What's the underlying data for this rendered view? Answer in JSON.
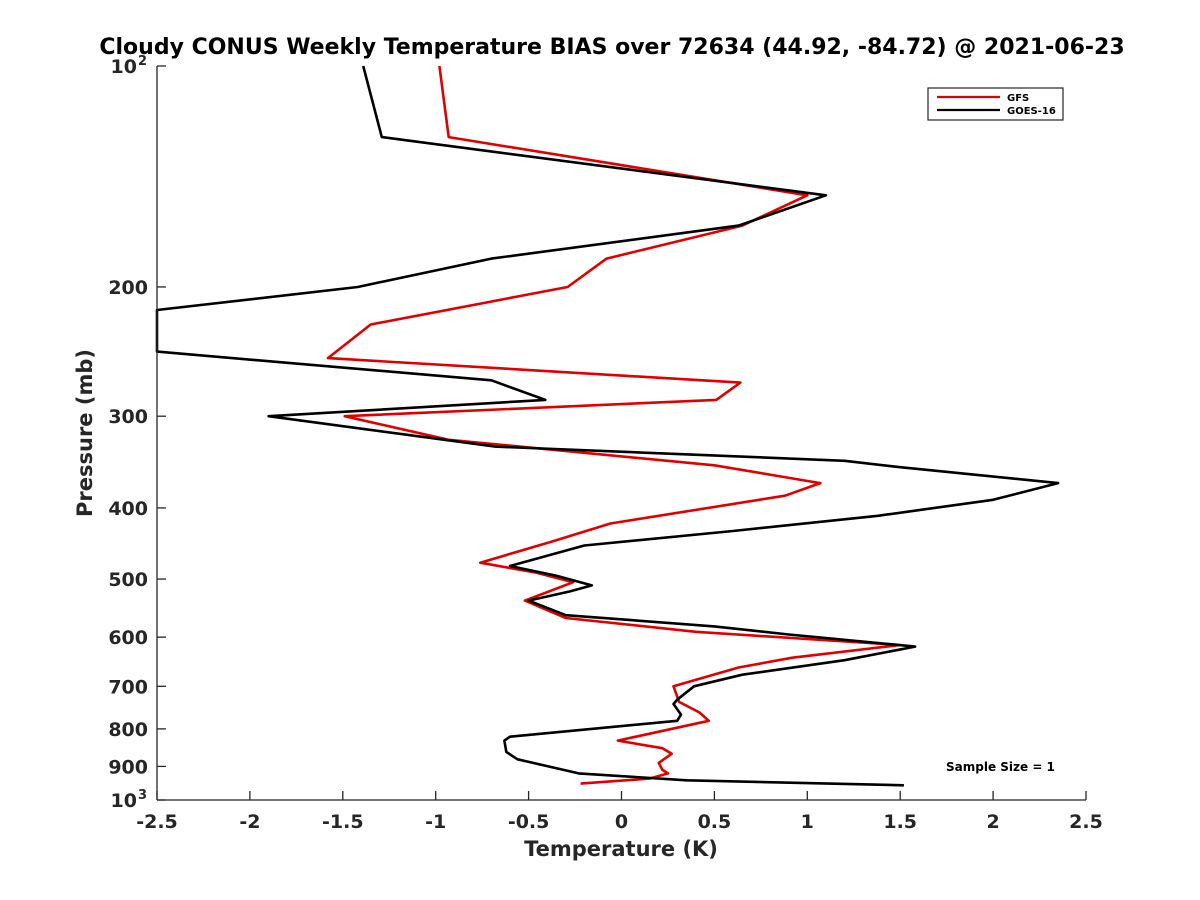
{
  "chart_data": {
    "type": "line",
    "title": "Cloudy CONUS Weekly Temperature BIAS over 72634 (44.92, -84.72) @ 2021-06-23",
    "xlabel": "Temperature (K)",
    "ylabel": "Pressure (mb)",
    "xlim": [
      -2.5,
      2.5
    ],
    "ylim": [
      100,
      1000
    ],
    "y_scale": "log",
    "y_reversed": true,
    "grid": false,
    "legend_position": "top-right",
    "x_ticks": [
      "-2.5",
      "-2",
      "-1.5",
      "-1",
      "-0.5",
      "0",
      "0.5",
      "1",
      "1.5",
      "2",
      "2.5"
    ],
    "y_ticks": [
      {
        "value": 100,
        "base": "10",
        "exp": "2"
      },
      {
        "value": 200,
        "label": "200"
      },
      {
        "value": 300,
        "label": "300"
      },
      {
        "value": 400,
        "label": "400"
      },
      {
        "value": 500,
        "label": "500"
      },
      {
        "value": 600,
        "label": "600"
      },
      {
        "value": 700,
        "label": "700"
      },
      {
        "value": 800,
        "label": "800"
      },
      {
        "value": 900,
        "label": "900"
      },
      {
        "value": 1000,
        "base": "10",
        "exp": "3"
      }
    ],
    "series": [
      {
        "name": "GFS",
        "color": "#e00000",
        "points": [
          {
            "t": -0.98,
            "p": 100
          },
          {
            "t": -0.93,
            "p": 125
          },
          {
            "t": 1.0,
            "p": 150
          },
          {
            "t": 0.65,
            "p": 165
          },
          {
            "t": -0.08,
            "p": 183
          },
          {
            "t": -0.29,
            "p": 200
          },
          {
            "t": -1.35,
            "p": 225
          },
          {
            "t": -1.58,
            "p": 250
          },
          {
            "t": 0.64,
            "p": 270
          },
          {
            "t": 0.51,
            "p": 285
          },
          {
            "t": -1.49,
            "p": 300
          },
          {
            "t": -0.93,
            "p": 323
          },
          {
            "t": 0.5,
            "p": 350
          },
          {
            "t": 1.07,
            "p": 370
          },
          {
            "t": 0.88,
            "p": 385
          },
          {
            "t": -0.06,
            "p": 420
          },
          {
            "t": -0.38,
            "p": 445
          },
          {
            "t": -0.76,
            "p": 475
          },
          {
            "t": -0.46,
            "p": 490
          },
          {
            "t": -0.26,
            "p": 505
          },
          {
            "t": -0.52,
            "p": 535
          },
          {
            "t": -0.3,
            "p": 565
          },
          {
            "t": 0.4,
            "p": 590
          },
          {
            "t": 1.5,
            "p": 615
          },
          {
            "t": 0.92,
            "p": 640
          },
          {
            "t": 0.63,
            "p": 660
          },
          {
            "t": 0.28,
            "p": 700
          },
          {
            "t": 0.31,
            "p": 735
          },
          {
            "t": 0.42,
            "p": 760
          },
          {
            "t": 0.47,
            "p": 780
          },
          {
            "t": -0.02,
            "p": 830
          },
          {
            "t": 0.22,
            "p": 850
          },
          {
            "t": 0.27,
            "p": 865
          },
          {
            "t": 0.2,
            "p": 890
          },
          {
            "t": 0.22,
            "p": 910
          },
          {
            "t": 0.25,
            "p": 920
          },
          {
            "t": 0.15,
            "p": 935
          },
          {
            "t": -0.22,
            "p": 950
          }
        ]
      },
      {
        "name": "GOES-16",
        "color": "#000000",
        "points": [
          {
            "t": -1.39,
            "p": 100
          },
          {
            "t": -1.29,
            "p": 125
          },
          {
            "t": 1.1,
            "p": 150
          },
          {
            "t": 0.63,
            "p": 165
          },
          {
            "t": -0.7,
            "p": 183
          },
          {
            "t": -1.42,
            "p": 200
          },
          {
            "t": -2.5,
            "p": 215
          },
          {
            "t": -2.5,
            "p": 245
          },
          {
            "t": -0.7,
            "p": 268
          },
          {
            "t": -0.41,
            "p": 285
          },
          {
            "t": -1.9,
            "p": 300
          },
          {
            "t": -0.68,
            "p": 330
          },
          {
            "t": 1.2,
            "p": 345
          },
          {
            "t": 1.5,
            "p": 352
          },
          {
            "t": 2.35,
            "p": 370
          },
          {
            "t": 2.0,
            "p": 390
          },
          {
            "t": 1.38,
            "p": 410
          },
          {
            "t": 0.6,
            "p": 430
          },
          {
            "t": -0.2,
            "p": 450
          },
          {
            "t": -0.6,
            "p": 480
          },
          {
            "t": -0.35,
            "p": 495
          },
          {
            "t": -0.16,
            "p": 510
          },
          {
            "t": -0.28,
            "p": 520
          },
          {
            "t": -0.5,
            "p": 535
          },
          {
            "t": -0.3,
            "p": 560
          },
          {
            "t": 0.5,
            "p": 580
          },
          {
            "t": 0.9,
            "p": 595
          },
          {
            "t": 1.58,
            "p": 618
          },
          {
            "t": 1.2,
            "p": 645
          },
          {
            "t": 0.65,
            "p": 675
          },
          {
            "t": 0.39,
            "p": 700
          },
          {
            "t": 0.3,
            "p": 730
          },
          {
            "t": 0.28,
            "p": 740
          },
          {
            "t": 0.32,
            "p": 765
          },
          {
            "t": 0.3,
            "p": 780
          },
          {
            "t": -0.6,
            "p": 820
          },
          {
            "t": -0.63,
            "p": 830
          },
          {
            "t": -0.62,
            "p": 860
          },
          {
            "t": -0.56,
            "p": 880
          },
          {
            "t": -0.23,
            "p": 920
          },
          {
            "t": 0.35,
            "p": 940
          },
          {
            "t": 1.52,
            "p": 955
          }
        ]
      }
    ],
    "annotations": [
      "Sample Size = 1"
    ]
  }
}
